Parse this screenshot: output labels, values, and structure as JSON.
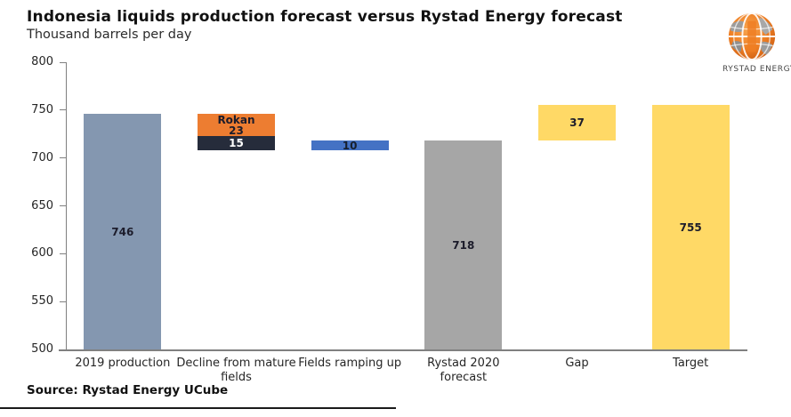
{
  "header": {
    "title": "Indonesia liquids production forecast versus Rystad Energy forecast",
    "subtitle": "Thousand barrels per day"
  },
  "logo": {
    "brand": "RYSTAD ENERGY"
  },
  "footer": {
    "source": "Source: Rystad Energy UCube"
  },
  "colors": {
    "production_bar": "#8497B0",
    "rokan_segment": "#ED7D31",
    "other_decline_segment": "#262C3B",
    "ramp_up_segment": "#4472C4",
    "forecast_bar": "#A6A6A6",
    "gap_target_bar": "#FFD966",
    "axis": "#808080",
    "label_dark": "#1c1c2b",
    "label_light": "#ffffff"
  },
  "chart_data": {
    "type": "bar",
    "subtype": "waterfall",
    "title": "Indonesia liquids production forecast versus Rystad Energy forecast",
    "subtitle": "Thousand barrels per day",
    "ylabel": "Thousand barrels per day",
    "xlabel": "",
    "ylim": [
      500,
      800
    ],
    "yticks": [
      800,
      750,
      700,
      650,
      600,
      550,
      500
    ],
    "grid": false,
    "legend": false,
    "categories": [
      "2019 production",
      "Decline from mature fields",
      "Fields ramping up",
      "Rystad 2020 forecast",
      "Gap",
      "Target"
    ],
    "bars": [
      {
        "category_lines": [
          "2019 production"
        ],
        "segments": [
          {
            "label_lines": [
              "746"
            ],
            "value": 746,
            "from": 500,
            "to": 746,
            "color": "#8497B0",
            "text_color": "#1c1c2b",
            "big": true
          }
        ]
      },
      {
        "category_lines": [
          "Decline from mature",
          "fields"
        ],
        "segments": [
          {
            "label_lines": [
              "Rokan",
              "23"
            ],
            "value": 23,
            "from": 723,
            "to": 746,
            "color": "#ED7D31",
            "text_color": "#1c1c2b",
            "big": false
          },
          {
            "label_lines": [
              "15"
            ],
            "value": 15,
            "from": 708,
            "to": 723,
            "color": "#262C3B",
            "text_color": "#ffffff",
            "big": false
          }
        ]
      },
      {
        "category_lines": [
          "Fields ramping up"
        ],
        "segments": [
          {
            "label_lines": [
              "10"
            ],
            "value": 10,
            "from": 708,
            "to": 718,
            "color": "#4472C4",
            "text_color": "#17202E",
            "big": false
          }
        ]
      },
      {
        "category_lines": [
          "Rystad 2020",
          "forecast"
        ],
        "segments": [
          {
            "label_lines": [
              "718"
            ],
            "value": 718,
            "from": 500,
            "to": 718,
            "color": "#A6A6A6",
            "text_color": "#1c1c2b",
            "big": true
          }
        ]
      },
      {
        "category_lines": [
          "Gap"
        ],
        "segments": [
          {
            "label_lines": [
              "37"
            ],
            "value": 37,
            "from": 718,
            "to": 755,
            "color": "#FFD966",
            "text_color": "#1c1c2b",
            "big": true
          }
        ]
      },
      {
        "category_lines": [
          "Target"
        ],
        "segments": [
          {
            "label_lines": [
              "755"
            ],
            "value": 755,
            "from": 500,
            "to": 755,
            "color": "#FFD966",
            "text_color": "#1c1c2b",
            "big": true
          }
        ]
      }
    ],
    "source": "Source: Rystad Energy UCube"
  }
}
